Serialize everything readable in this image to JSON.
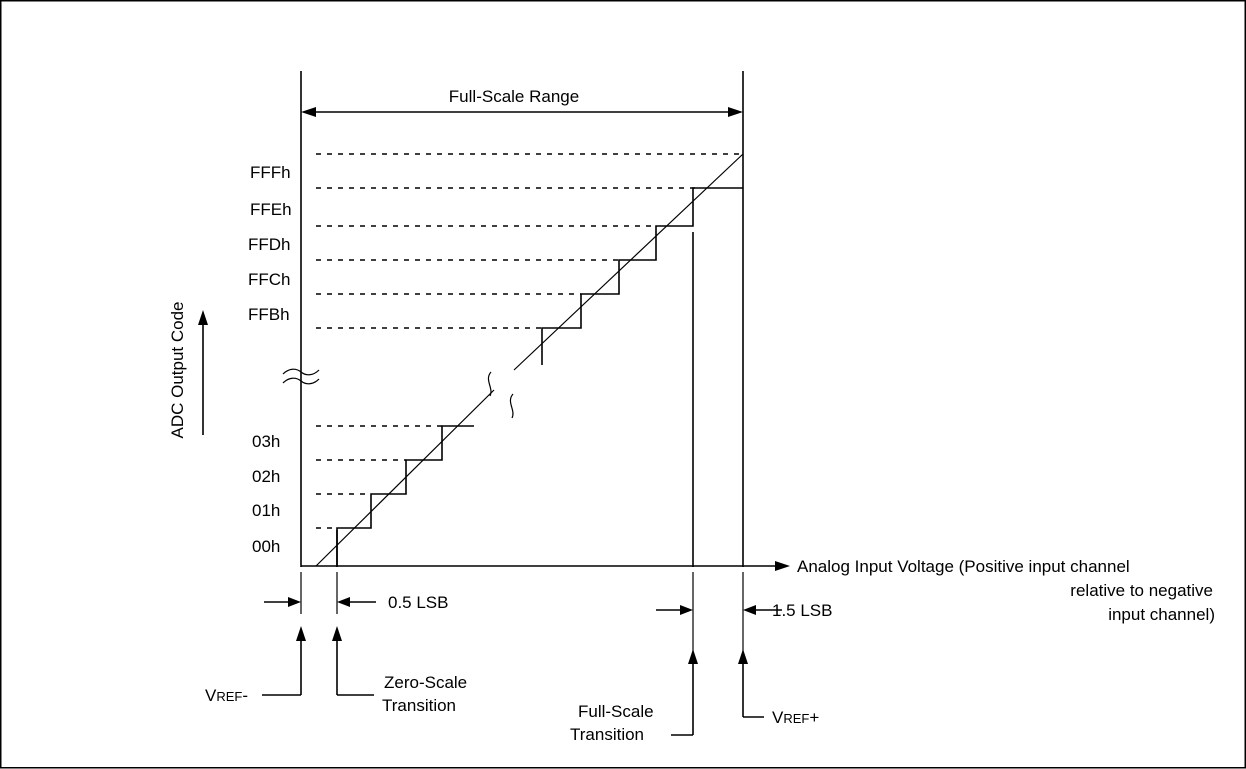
{
  "diagram": {
    "full_scale_range": "Full-Scale Range",
    "y_axis_label": "ADC Output Code",
    "x_axis_label_lines": [
      "Analog Input Voltage (Positive input channel",
      "relative to negative",
      "input channel)"
    ],
    "codes_top": [
      "FFFh",
      "FFEh",
      "FFDh",
      "FFCh",
      "FFBh"
    ],
    "codes_bottom": [
      "03h",
      "02h",
      "01h",
      "00h"
    ],
    "lsb_low": "0.5 LSB",
    "lsb_high": "1.5 LSB",
    "vref_minus": {
      "main": "V",
      "sub": "REF",
      "suffix": "-"
    },
    "vref_plus": {
      "main": "V",
      "sub": "REF",
      "suffix": "+"
    },
    "zero_scale_lines": [
      "Zero-Scale",
      "Transition"
    ],
    "full_scale_lines": [
      "Full-Scale",
      "Transition"
    ]
  }
}
